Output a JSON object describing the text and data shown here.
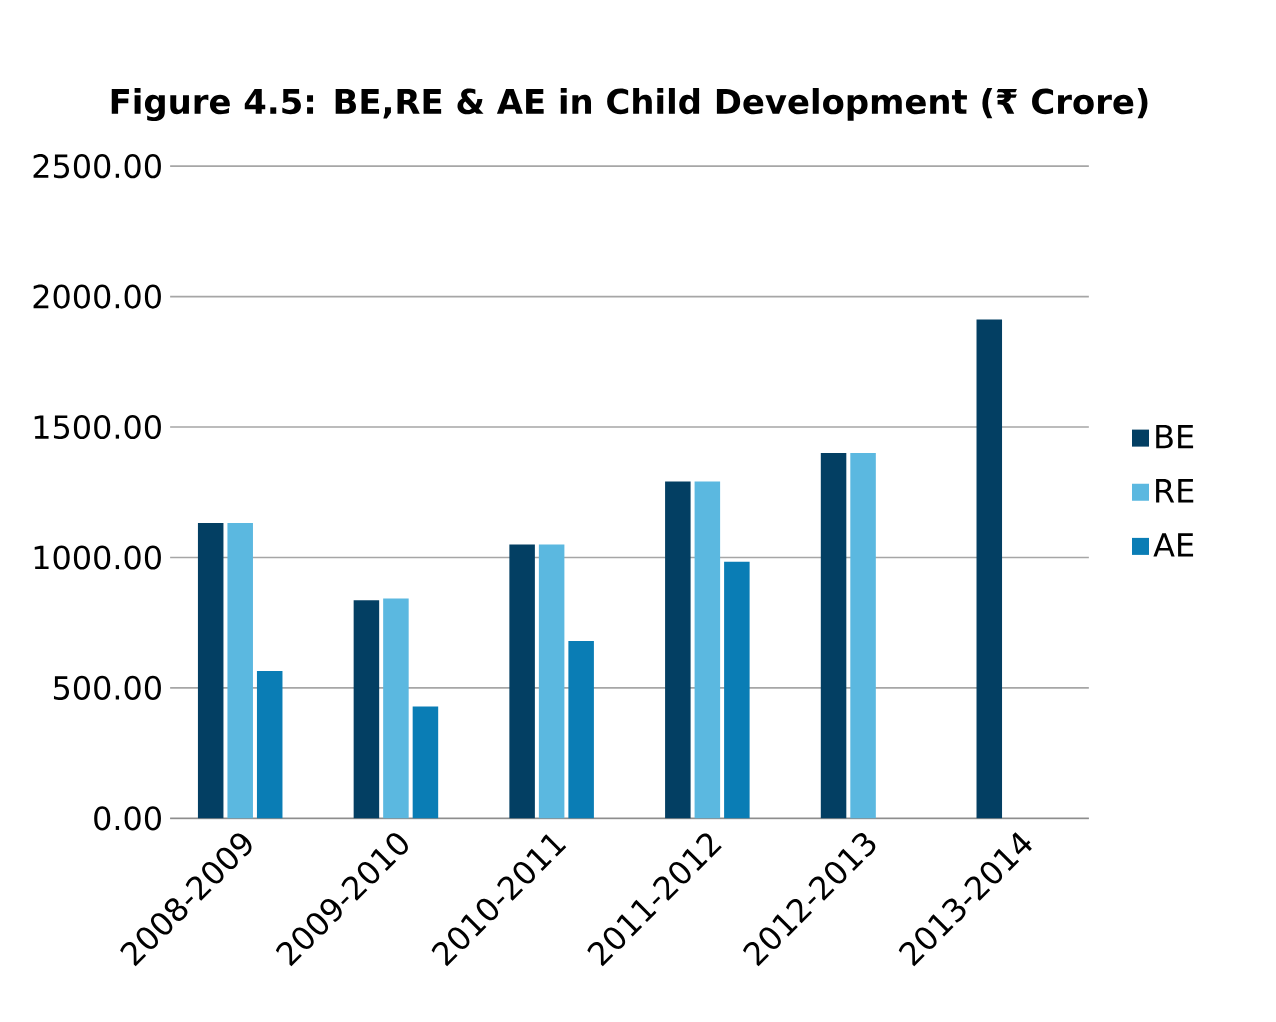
{
  "chart_data": {
    "type": "bar",
    "title": "Figure 4.5: BE,RE & AE in Child Development  (₹ Crore)",
    "categories": [
      "2008-2009",
      "2009-2010",
      "2010-2011",
      "2011-2012",
      "2012-2013",
      "2013-2014"
    ],
    "series": [
      {
        "name": "BE",
        "color": "#033f63",
        "values": [
          1132,
          836,
          1050,
          1291,
          1400,
          1912
        ]
      },
      {
        "name": "RE",
        "color": "#5bb8e0",
        "values": [
          1132,
          843,
          1050,
          1291,
          1400,
          null
        ]
      },
      {
        "name": "AE",
        "color": "#0a7db5",
        "values": [
          565,
          429,
          680,
          984,
          null,
          null
        ]
      }
    ],
    "ylim": [
      0,
      2500
    ],
    "yticks": [
      {
        "value": 0,
        "label": "0.00"
      },
      {
        "value": 500,
        "label": "500.00"
      },
      {
        "value": 1000,
        "label": "1000.00"
      },
      {
        "value": 1500,
        "label": "1500.00"
      },
      {
        "value": 2000,
        "label": "2000.00"
      },
      {
        "value": 2500,
        "label": "2500.00"
      }
    ],
    "grid": "y",
    "legend": "right"
  }
}
